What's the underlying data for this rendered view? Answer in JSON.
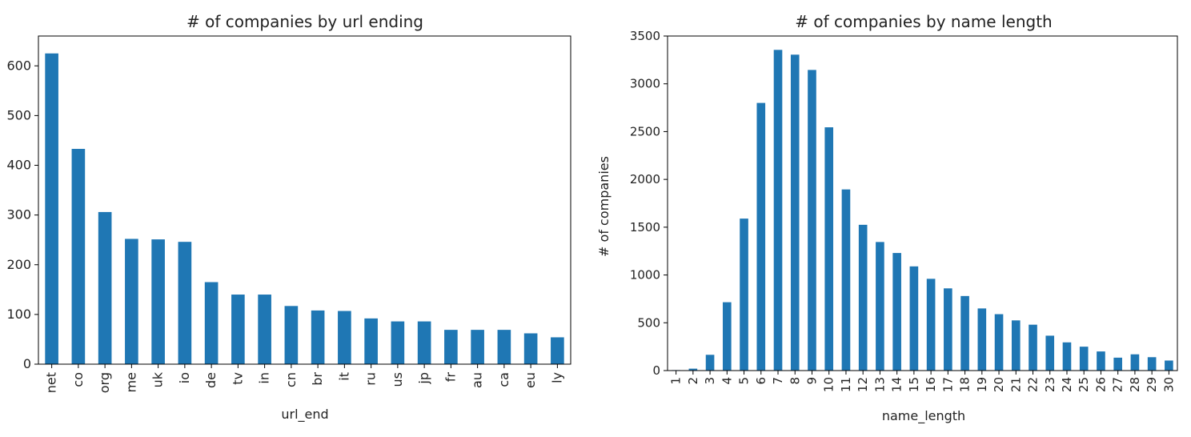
{
  "chart_data": [
    {
      "type": "bar",
      "title": "# of companies by url ending",
      "xlabel": "url_end",
      "ylabel": "",
      "categories": [
        "net",
        "co",
        "org",
        "me",
        "uk",
        "io",
        "de",
        "tv",
        "in",
        "cn",
        "br",
        "it",
        "ru",
        "us",
        "jp",
        "fr",
        "au",
        "ca",
        "eu",
        "ly"
      ],
      "values": [
        625,
        433,
        306,
        252,
        251,
        246,
        165,
        140,
        140,
        117,
        108,
        107,
        92,
        86,
        86,
        69,
        69,
        69,
        62,
        54
      ],
      "ylim": [
        0,
        660
      ],
      "yticks": [
        0,
        100,
        200,
        300,
        400,
        500,
        600
      ],
      "color": "#1f77b4",
      "grid": false
    },
    {
      "type": "bar",
      "title": "# of companies by name length",
      "xlabel": "name_length",
      "ylabel": "# of companies",
      "categories": [
        "1",
        "2",
        "3",
        "4",
        "5",
        "6",
        "7",
        "8",
        "9",
        "10",
        "11",
        "12",
        "13",
        "14",
        "15",
        "16",
        "17",
        "18",
        "19",
        "20",
        "21",
        "22",
        "23",
        "24",
        "25",
        "26",
        "27",
        "28",
        "29",
        "30"
      ],
      "values": [
        5,
        20,
        165,
        715,
        1590,
        2800,
        3355,
        3305,
        3145,
        2545,
        1895,
        1525,
        1345,
        1230,
        1090,
        960,
        860,
        780,
        650,
        590,
        525,
        480,
        365,
        295,
        250,
        200,
        135,
        170,
        140,
        105
      ],
      "ylim": [
        0,
        3500
      ],
      "yticks": [
        0,
        500,
        1000,
        1500,
        2000,
        2500,
        3000,
        3500
      ],
      "color": "#1f77b4",
      "grid": false
    }
  ]
}
